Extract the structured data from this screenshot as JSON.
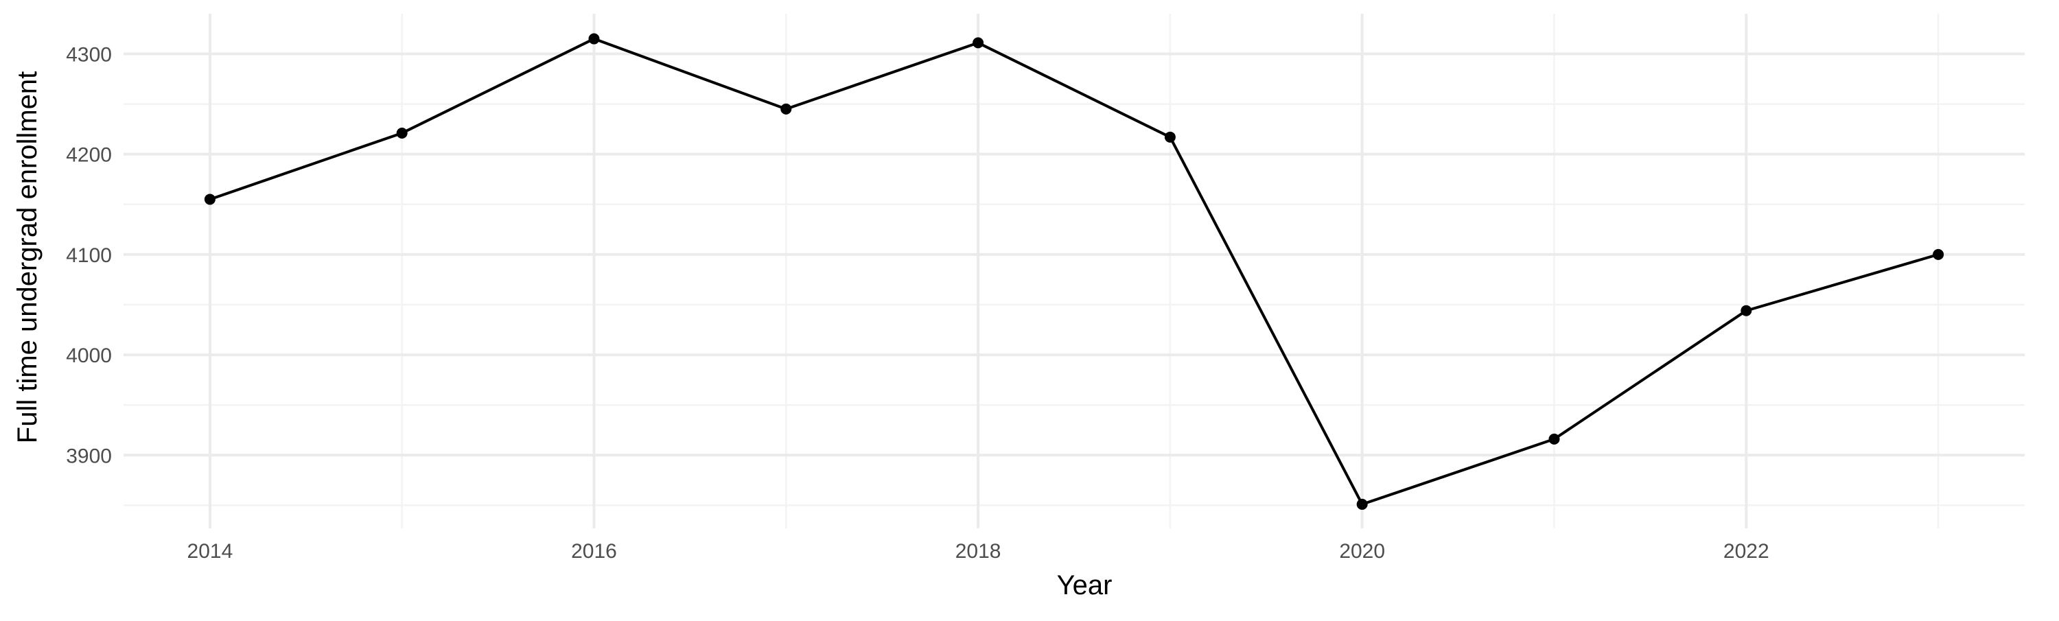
{
  "chart_data": {
    "type": "line",
    "title": "",
    "xlabel": "Year",
    "ylabel": "Full time undergrad enrollment",
    "x": [
      2014,
      2015,
      2016,
      2017,
      2018,
      2019,
      2020,
      2021,
      2022,
      2023
    ],
    "series": [
      {
        "values": [
          4155,
          4221,
          4315,
          4245,
          4311,
          4217,
          3851,
          3916,
          4044,
          4100
        ]
      }
    ],
    "x_ticks": [
      2014,
      2016,
      2018,
      2020,
      2022
    ],
    "y_ticks": [
      3900,
      4000,
      4100,
      4200,
      4300
    ],
    "xlim": [
      2013.55,
      2023.45
    ],
    "ylim": [
      3827,
      4340
    ],
    "grid": true,
    "legend": "none",
    "colors": {
      "line": "#000000",
      "points": "#000000",
      "grid": "#ebebeb",
      "tick_text": "#4d4d4d"
    }
  }
}
